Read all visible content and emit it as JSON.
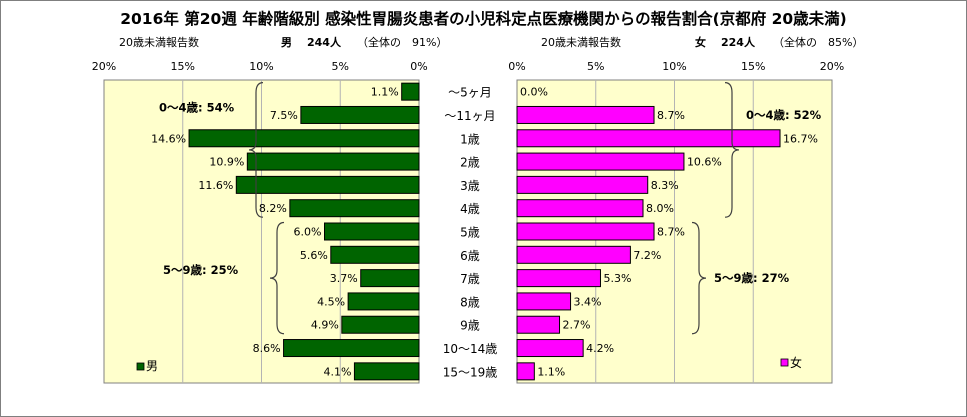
{
  "title": "2016年 第20週 年齢階級別 感染性胃腸炎患者の小児科定点医療機関からの報告割合(京都府 20歳未満)",
  "male_header": {
    "label": "20歳未満報告数",
    "sex": "男",
    "count": "244人",
    "note": "（全体の　91%）"
  },
  "female_header": {
    "label": "20歳未満報告数",
    "sex": "女",
    "count": "224人",
    "note": "（全体の　85%）"
  },
  "chart_data": {
    "type": "bar",
    "orientation": "horizontal",
    "layout": "population-pyramid",
    "categories": [
      "～5ヶ月",
      "～11ヶ月",
      "1歳",
      "2歳",
      "3歳",
      "4歳",
      "5歳",
      "6歳",
      "7歳",
      "8歳",
      "9歳",
      "10～14歳",
      "15～19歳"
    ],
    "xlim": [
      0,
      20
    ],
    "xticks": [
      "0%",
      "5%",
      "10%",
      "15%",
      "20%"
    ],
    "grid": true,
    "series": [
      {
        "name": "男",
        "side": "left",
        "color": "#006400",
        "values": [
          1.1,
          7.5,
          14.6,
          10.9,
          11.6,
          8.2,
          6.0,
          5.6,
          3.7,
          4.5,
          4.9,
          8.6,
          4.1
        ],
        "labels": [
          "1.1%",
          "7.5%",
          "14.6%",
          "10.9%",
          "11.6%",
          "8.2%",
          "6.0%",
          "5.6%",
          "3.7%",
          "4.5%",
          "4.9%",
          "8.6%",
          "4.1%"
        ]
      },
      {
        "name": "女",
        "side": "right",
        "color": "#ff00ff",
        "values": [
          0.0,
          8.7,
          16.7,
          10.6,
          8.3,
          8.0,
          8.7,
          7.2,
          5.3,
          3.4,
          2.7,
          4.2,
          1.1
        ],
        "labels": [
          "0.0%",
          "8.7%",
          "16.7%",
          "10.6%",
          "8.3%",
          "8.0%",
          "8.7%",
          "7.2%",
          "5.3%",
          "3.4%",
          "2.7%",
          "4.2%",
          "1.1%"
        ]
      }
    ],
    "annotations": {
      "male_0_4": "0～4歳: 54%",
      "male_5_9": "5～9歳: 25%",
      "female_0_4": "0～4歳: 52%",
      "female_5_9": "5～9歳: 27%"
    },
    "legend_placement": "bottom-left of each panel"
  },
  "colors": {
    "plot_background": "#ffffcc",
    "male_bar": "#006400",
    "female_bar": "#ff00ff",
    "gridline": "#b4b4b4"
  }
}
